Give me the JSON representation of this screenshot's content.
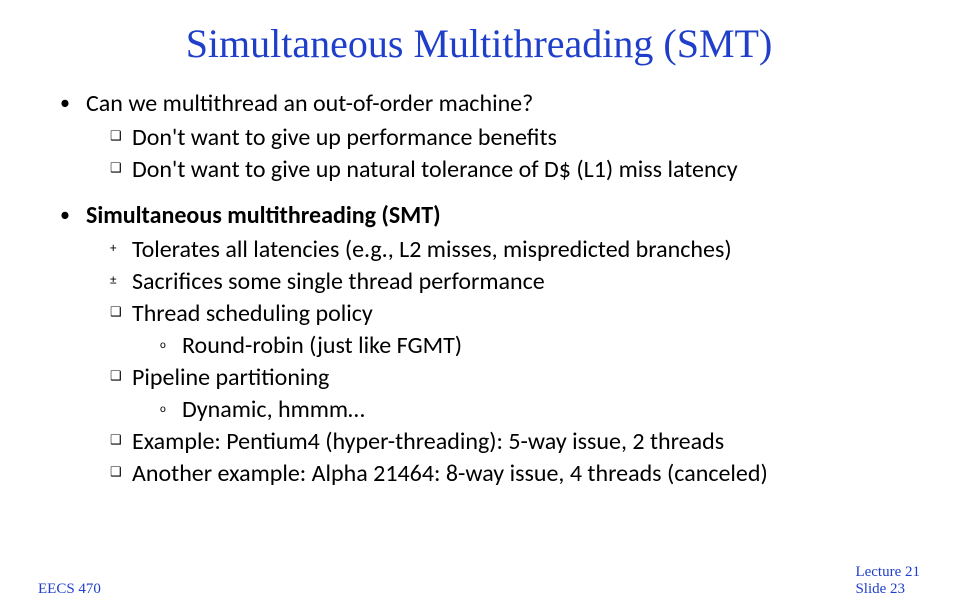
{
  "title": "Simultaneous Multithreading (SMT)",
  "b1": {
    "text": "Can we multithread an out-of-order machine?",
    "s1": "Don't want to give up performance benefits",
    "s2": "Don't want to give up natural tolerance of D$ (L1) miss latency"
  },
  "b2": {
    "text": "Simultaneous multithreading (SMT)",
    "s1": "Tolerates all latencies (e.g., L2 misses, mispredicted branches)",
    "s2": "Sacrifices some single thread performance",
    "s3": "Thread scheduling policy",
    "s3a": "Round-robin (just like FGMT)",
    "s4": "Pipeline partitioning",
    "s4a": "Dynamic, hmmm…",
    "s5": "Example: Pentium4 (hyper-threading): 5-way issue, 2 threads",
    "s6": "Another example: Alpha 21464: 8-way issue, 4 threads (canceled)"
  },
  "footer": {
    "course": "EECS 470",
    "lecture": "Lecture 21",
    "slide": "Slide 23"
  },
  "bullets": {
    "dot": "•",
    "square": "❑",
    "plus": "+",
    "pm": "±",
    "circ": "o"
  },
  "colors": {
    "title": "#1f3fca",
    "footer": "#1f3fca",
    "body": "#000000",
    "bg": "#ffffff"
  },
  "fontsizes": {
    "title_pt": 40,
    "body_pt": 24,
    "footer_pt": 15
  }
}
